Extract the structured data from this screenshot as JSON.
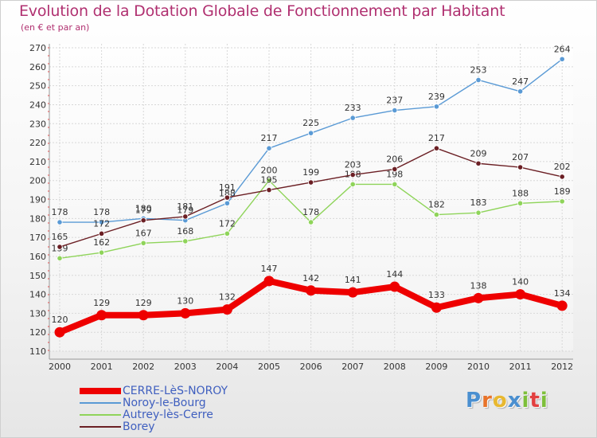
{
  "header": {
    "title": "Evolution de la Dotation Globale de Fonctionnement par Habitant",
    "subtitle": "(en € et par an)"
  },
  "chart_data": {
    "type": "line",
    "title": "Evolution de la Dotation Globale de Fonctionnement par Habitant",
    "subtitle": "(en € et par an)",
    "x": [
      2000,
      2001,
      2002,
      2003,
      2004,
      2005,
      2006,
      2007,
      2008,
      2009,
      2010,
      2011,
      2012
    ],
    "ylim": [
      110,
      270
    ],
    "yticks": [
      110,
      120,
      130,
      140,
      150,
      160,
      170,
      180,
      190,
      200,
      210,
      220,
      230,
      240,
      250,
      260,
      270
    ],
    "grid": true,
    "legend_position": "bottom-left",
    "series": [
      {
        "name": "CERRE-LèS-NOROY",
        "color": "#ee0000",
        "values": [
          120,
          129,
          129,
          130,
          132,
          147,
          142,
          141,
          144,
          133,
          138,
          140,
          134
        ]
      },
      {
        "name": "Noroy-le-Bourg",
        "color": "#5a9ad5",
        "values": [
          178,
          178,
          180,
          179,
          188,
          217,
          225,
          233,
          237,
          239,
          253,
          247,
          264
        ]
      },
      {
        "name": "Autrey-lès-Cerre",
        "color": "#8fd45a",
        "values": [
          159,
          162,
          167,
          168,
          172,
          200,
          178,
          198,
          198,
          182,
          183,
          188,
          189
        ]
      },
      {
        "name": "Borey",
        "color": "#6b1f24",
        "values": [
          165,
          172,
          179,
          181,
          191,
          195,
          199,
          203,
          206,
          217,
          209,
          207,
          202
        ]
      }
    ]
  },
  "logo": {
    "text": "Proxiti",
    "colors": [
      "#4a8fd0",
      "#e8732a",
      "#e8b830",
      "#4a8fd0",
      "#7dbf3a",
      "#e24040",
      "#7dbf3a"
    ]
  }
}
